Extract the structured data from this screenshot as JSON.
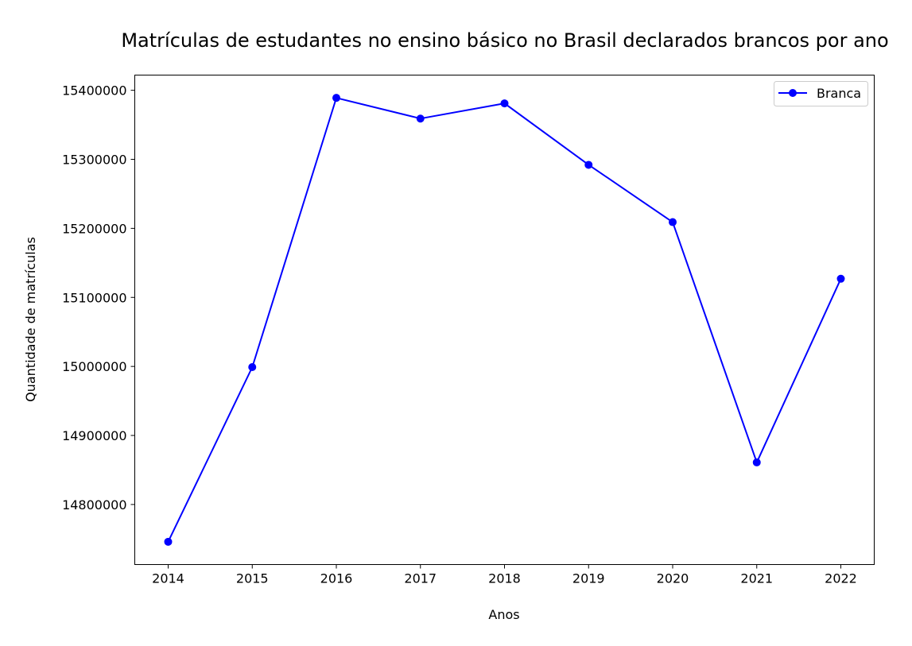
{
  "chart_data": {
    "type": "line",
    "title": "Matrículas de estudantes no ensino básico no Brasil declarados brancos por ano",
    "xlabel": "Anos",
    "ylabel": "Quantidade de matrículas",
    "x": [
      "2014",
      "2015",
      "2016",
      "2017",
      "2018",
      "2019",
      "2020",
      "2021",
      "2022"
    ],
    "y_ticks": [
      "14800000",
      "14900000",
      "15000000",
      "15100000",
      "15200000",
      "15300000",
      "15400000"
    ],
    "ylim": [
      14713000,
      15422000
    ],
    "grid": false,
    "legend_position": "top-right",
    "series": [
      {
        "name": "Branca",
        "color": "#0000ff",
        "marker": "circle",
        "values": [
          14746000,
          14999000,
          15389000,
          15359000,
          15381000,
          15292000,
          15209000,
          14861000,
          15127000
        ]
      }
    ]
  }
}
